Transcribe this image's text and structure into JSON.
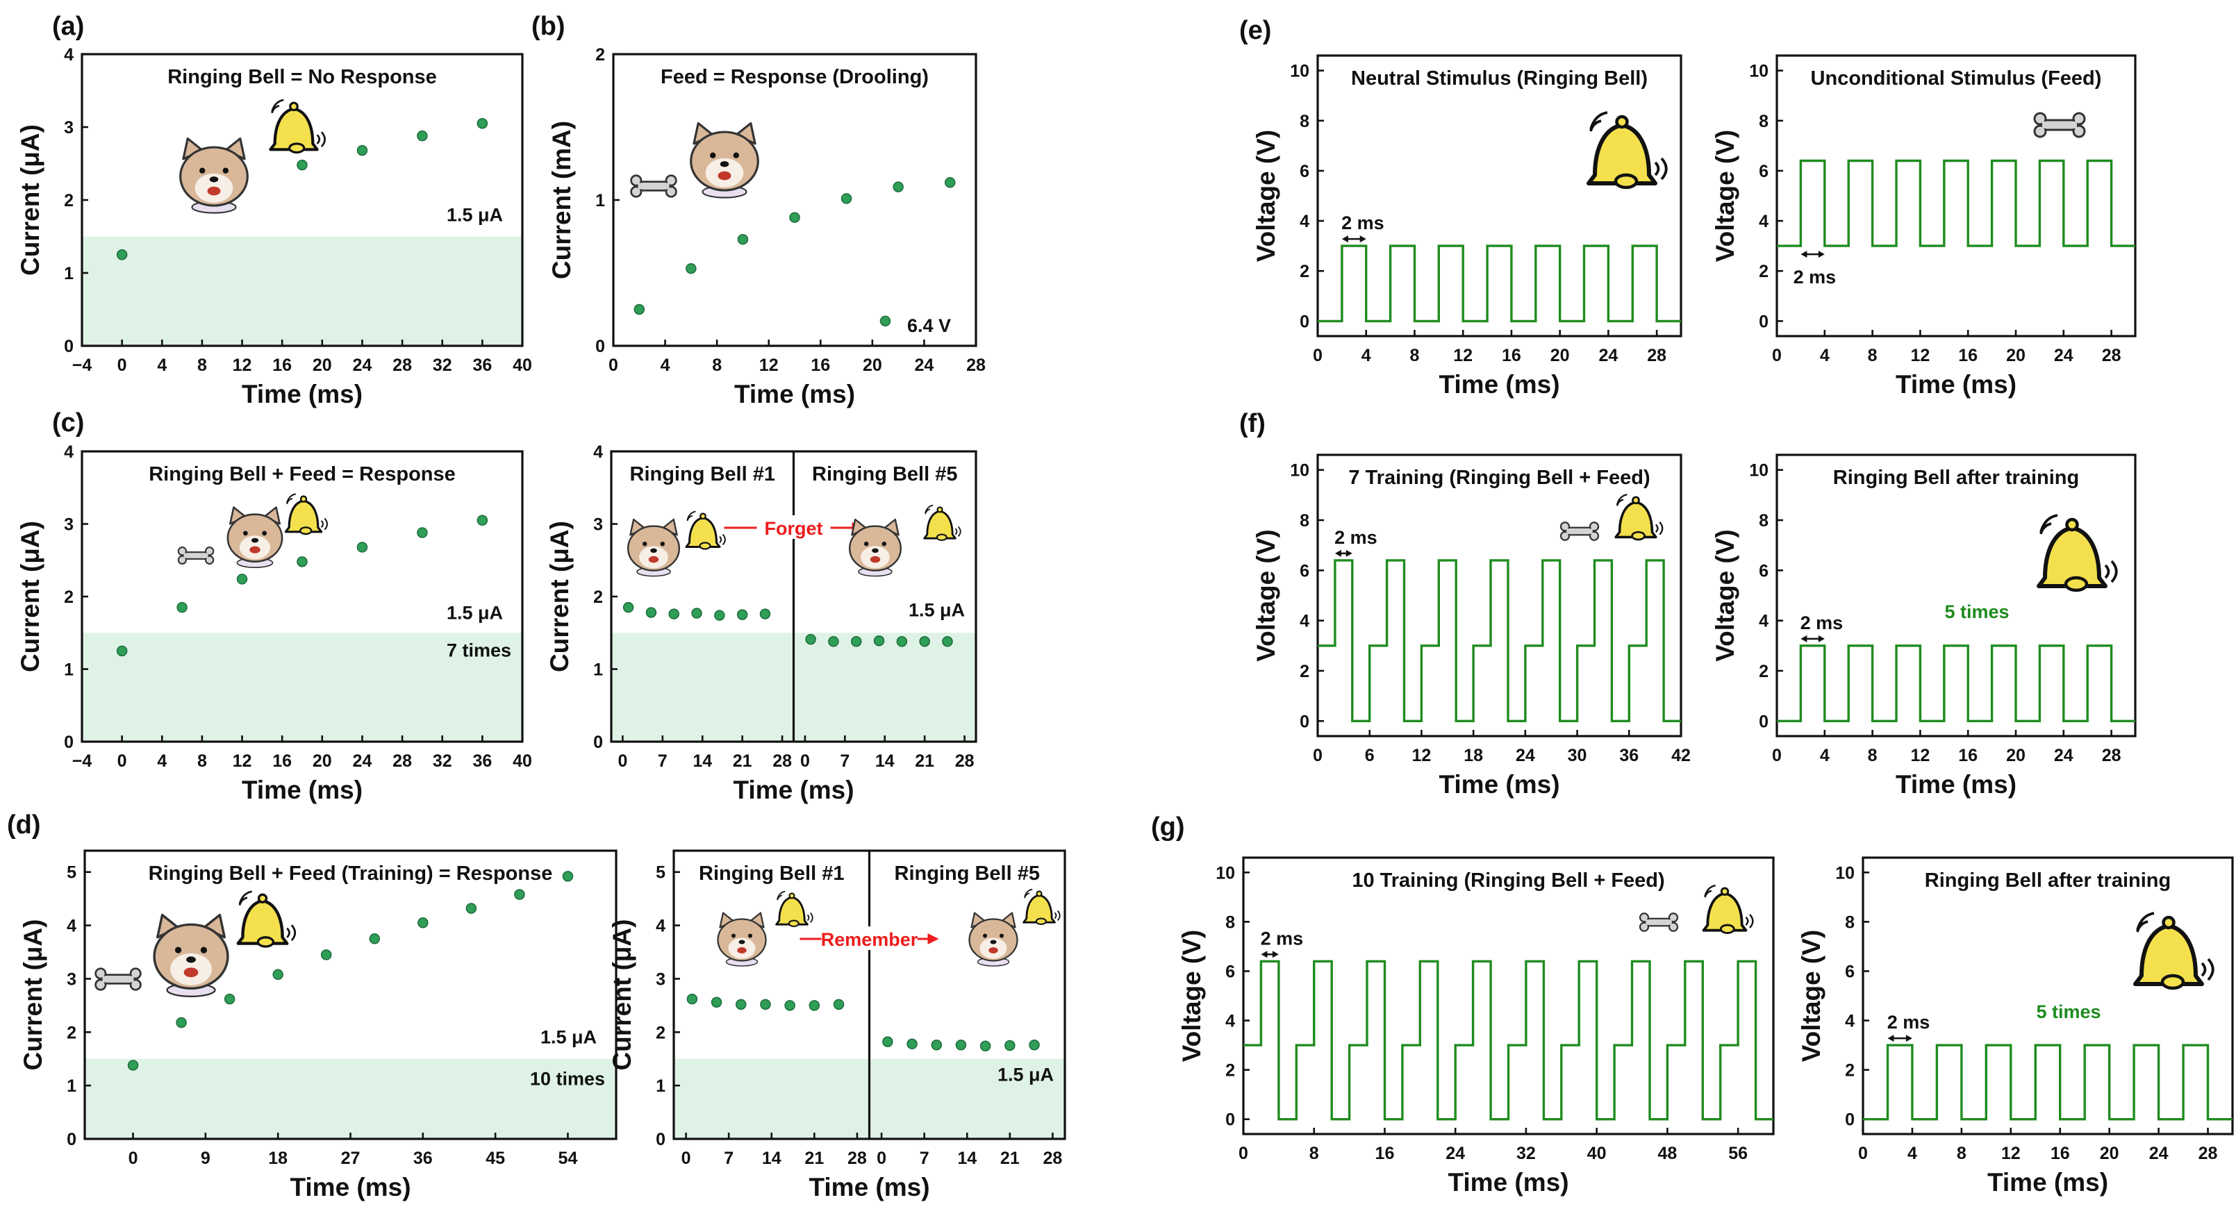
{
  "colors": {
    "accent": "#1f8c1f",
    "marker": "#2f9e57",
    "shade": "#dff2e6",
    "arrow_text": "#ee1c1c",
    "bell": "#f4e04d",
    "face": "#d9b89a"
  },
  "panel_labels": {
    "a": "(a)",
    "b": "(b)",
    "c": "(c)",
    "d": "(d)",
    "e": "(e)",
    "f": "(f)",
    "g": "(g)"
  },
  "icons": [
    "dog-icon",
    "bell-icon",
    "bone-icon"
  ],
  "chart_data": [
    {
      "id": "a",
      "type": "scatter",
      "title": "Ringing Bell = No Response",
      "xlabel": "Time (ms)",
      "ylabel": "Current (μA)",
      "xlim": [
        -4,
        40
      ],
      "ylim": [
        0,
        4
      ],
      "xticks": [
        -4,
        0,
        4,
        8,
        12,
        16,
        20,
        24,
        28,
        32,
        36,
        40
      ],
      "yticks": [
        0,
        1,
        2,
        3,
        4
      ],
      "x": [
        0,
        18,
        24,
        30,
        36
      ],
      "y": [
        1.25,
        2.48,
        2.68,
        2.88,
        3.05
      ],
      "threshold": 1.5,
      "threshold_label": "1.5 μA"
    },
    {
      "id": "b",
      "type": "scatter",
      "title": "Feed = Response (Drooling)",
      "xlabel": "Time (ms)",
      "ylabel": "Current (mA)",
      "xlim": [
        0,
        28
      ],
      "ylim": [
        0,
        2
      ],
      "xticks": [
        0,
        4,
        8,
        12,
        16,
        20,
        24,
        28
      ],
      "yticks": [
        0,
        1,
        2
      ],
      "x": [
        2,
        6,
        10,
        14,
        18,
        22,
        26
      ],
      "y": [
        0.25,
        0.53,
        0.73,
        0.88,
        1.01,
        1.09,
        1.12
      ],
      "extra_point": {
        "x": 21,
        "y": 0.17
      },
      "annotation": "6.4 V"
    },
    {
      "id": "c1",
      "type": "scatter",
      "title": "Ringing Bell + Feed = Response",
      "xlabel": "Time (ms)",
      "ylabel": "Current (μA)",
      "xlim": [
        -4,
        40
      ],
      "ylim": [
        0,
        4
      ],
      "xticks": [
        -4,
        0,
        4,
        8,
        12,
        16,
        20,
        24,
        28,
        32,
        36,
        40
      ],
      "yticks": [
        0,
        1,
        2,
        3,
        4
      ],
      "x": [
        0,
        6,
        12,
        18,
        24,
        30,
        36
      ],
      "y": [
        1.25,
        1.85,
        2.24,
        2.48,
        2.68,
        2.88,
        3.05
      ],
      "threshold": 1.5,
      "threshold_label": "1.5 μA",
      "count_label": "7 times"
    },
    {
      "id": "c2",
      "type": "scatter",
      "xlabel": "Time (ms)",
      "ylabel": "Current (μA)",
      "xlim": [
        -2,
        30
      ],
      "ylim": [
        0,
        4
      ],
      "yticks": [
        0,
        1,
        2,
        3,
        4
      ],
      "panels": [
        {
          "title": "Ringing Bell #1",
          "xticks": [
            0,
            7,
            14,
            21,
            28
          ],
          "x": [
            1,
            5,
            9,
            13,
            17,
            21,
            25
          ],
          "y": [
            1.85,
            1.78,
            1.76,
            1.77,
            1.74,
            1.75,
            1.76
          ]
        },
        {
          "title": "Ringing Bell #5",
          "xticks": [
            0,
            7,
            14,
            21,
            28
          ],
          "x": [
            1,
            5,
            9,
            13,
            17,
            21,
            25
          ],
          "y": [
            1.41,
            1.38,
            1.38,
            1.39,
            1.38,
            1.38,
            1.38
          ]
        }
      ],
      "threshold": 1.5,
      "threshold_label": "1.5 μA",
      "arrow_label": "Forget"
    },
    {
      "id": "d1",
      "type": "scatter",
      "title": "Ringing Bell + Feed (Training) = Response",
      "xlabel": "Time (ms)",
      "ylabel": "Current (μA)",
      "xlim": [
        -6,
        60
      ],
      "ylim": [
        0,
        5.4
      ],
      "xticks": [
        0,
        9,
        18,
        27,
        36,
        45,
        54
      ],
      "yticks": [
        0,
        1,
        2,
        3,
        4,
        5
      ],
      "x": [
        0,
        6,
        12,
        18,
        24,
        30,
        36,
        42,
        48,
        54
      ],
      "y": [
        1.38,
        2.18,
        2.62,
        3.08,
        3.45,
        3.75,
        4.05,
        4.32,
        4.58,
        4.92
      ],
      "threshold": 1.5,
      "threshold_label": "1.5 μA",
      "count_label": "10 times"
    },
    {
      "id": "d2",
      "type": "scatter",
      "xlabel": "Time (ms)",
      "ylabel": "Current (μA)",
      "xlim": [
        -2,
        30
      ],
      "ylim": [
        0,
        5.4
      ],
      "yticks": [
        0,
        1,
        2,
        3,
        4,
        5
      ],
      "panels": [
        {
          "title": "Ringing Bell #1",
          "xticks": [
            0,
            7,
            14,
            21,
            28
          ],
          "x": [
            1,
            5,
            9,
            13,
            17,
            21,
            25
          ],
          "y": [
            2.62,
            2.56,
            2.52,
            2.52,
            2.5,
            2.5,
            2.52
          ]
        },
        {
          "title": "Ringing Bell #5",
          "xticks": [
            0,
            7,
            14,
            21,
            28
          ],
          "x": [
            1,
            5,
            9,
            13,
            17,
            21,
            25
          ],
          "y": [
            1.82,
            1.78,
            1.76,
            1.76,
            1.74,
            1.75,
            1.76
          ]
        }
      ],
      "threshold": 1.5,
      "threshold_label": "1.5 μA",
      "arrow_label": "Remember"
    },
    {
      "id": "e1",
      "type": "line",
      "title": "Neutral Stimulus (Ringing Bell)",
      "xlabel": "Time (ms)",
      "ylabel": "Voltage (V)",
      "xlim": [
        0,
        30
      ],
      "ylim": [
        -0.6,
        10.6
      ],
      "xticks": [
        0,
        4,
        8,
        12,
        16,
        20,
        24,
        28
      ],
      "yticks": [
        0,
        2,
        4,
        6,
        8,
        10
      ],
      "pulse": {
        "base": 0,
        "high": 3,
        "start": 2,
        "width": 2,
        "period": 4,
        "count": 7
      },
      "width_label": "2 ms"
    },
    {
      "id": "e2",
      "type": "line",
      "title": "Unconditional Stimulus (Feed)",
      "xlabel": "Time (ms)",
      "ylabel": "Voltage (V)",
      "xlim": [
        0,
        30
      ],
      "ylim": [
        -0.6,
        10.6
      ],
      "xticks": [
        0,
        4,
        8,
        12,
        16,
        20,
        24,
        28
      ],
      "yticks": [
        0,
        2,
        4,
        6,
        8,
        10
      ],
      "pulse": {
        "base": 3,
        "high": 6.4,
        "start": 2,
        "width": 2,
        "period": 4,
        "count": 7
      },
      "width_label": "2 ms"
    },
    {
      "id": "f1",
      "type": "line",
      "title": "7 Training (Ringing Bell + Feed)",
      "xlabel": "Time (ms)",
      "ylabel": "Voltage (V)",
      "xlim": [
        0,
        42
      ],
      "ylim": [
        -0.6,
        10.6
      ],
      "xticks": [
        0,
        6,
        12,
        18,
        24,
        30,
        36,
        42
      ],
      "yticks": [
        0,
        2,
        4,
        6,
        8,
        10
      ],
      "pulse": {
        "type": "pair",
        "start": 0,
        "period": 6,
        "count": 7,
        "mid": 3,
        "high": 6.4,
        "base": 0
      },
      "width_label": "2 ms"
    },
    {
      "id": "f2",
      "type": "line",
      "title": "Ringing Bell after training",
      "xlabel": "Time (ms)",
      "ylabel": "Voltage (V)",
      "xlim": [
        0,
        30
      ],
      "ylim": [
        -0.6,
        10.6
      ],
      "xticks": [
        0,
        4,
        8,
        12,
        16,
        20,
        24,
        28
      ],
      "yticks": [
        0,
        2,
        4,
        6,
        8,
        10
      ],
      "pulse": {
        "base": 0,
        "high": 3,
        "start": 2,
        "width": 2,
        "period": 4,
        "count": 7
      },
      "width_label": "2 ms",
      "count_label": "5 times"
    },
    {
      "id": "g1",
      "type": "line",
      "title": "10 Training (Ringing Bell + Feed)",
      "xlabel": "Time (ms)",
      "ylabel": "Voltage (V)",
      "xlim": [
        0,
        60
      ],
      "ylim": [
        -0.6,
        10.6
      ],
      "xticks": [
        0,
        8,
        16,
        24,
        32,
        40,
        48,
        56
      ],
      "yticks": [
        0,
        2,
        4,
        6,
        8,
        10
      ],
      "pulse": {
        "type": "pair",
        "start": 0,
        "period": 6,
        "count": 10,
        "mid": 3,
        "high": 6.4,
        "base": 0
      },
      "width_label": "2 ms"
    },
    {
      "id": "g2",
      "type": "line",
      "title": "Ringing Bell after training",
      "xlabel": "Time (ms)",
      "ylabel": "Voltage (V)",
      "xlim": [
        0,
        30
      ],
      "ylim": [
        -0.6,
        10.6
      ],
      "xticks": [
        0,
        4,
        8,
        12,
        16,
        20,
        24,
        28
      ],
      "yticks": [
        0,
        2,
        4,
        6,
        8,
        10
      ],
      "pulse": {
        "base": 0,
        "high": 3,
        "start": 2,
        "width": 2,
        "period": 4,
        "count": 7
      },
      "width_label": "2 ms",
      "count_label": "5 times"
    }
  ]
}
